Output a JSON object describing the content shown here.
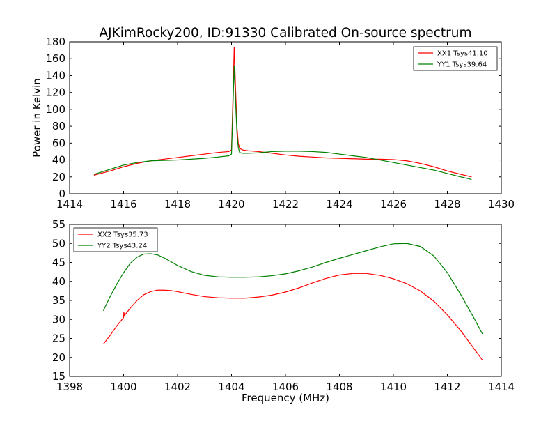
{
  "title": "AJKimRocky200, ID:91330 Calibrated On-source spectrum",
  "colors": {
    "red": "#ff0000",
    "green": "#008000"
  },
  "chart_data": [
    {
      "type": "line",
      "xlabel": "",
      "ylabel": "Power in Kelvin",
      "xlim": [
        1414,
        1430
      ],
      "ylim": [
        0,
        180
      ],
      "xticks": [
        1414,
        1416,
        1418,
        1420,
        1422,
        1424,
        1426,
        1428,
        1430
      ],
      "yticks": [
        0,
        20,
        40,
        60,
        80,
        100,
        120,
        140,
        160,
        180
      ],
      "grid": false,
      "legend": "top-right",
      "series": [
        {
          "name": "XX1 Tsys41.10",
          "color": "#ff0000",
          "x": [
            1414.9,
            1415.5,
            1416.0,
            1416.5,
            1417.0,
            1417.5,
            1418.0,
            1418.5,
            1419.0,
            1419.5,
            1419.9,
            1420.0,
            1420.05,
            1420.1,
            1420.15,
            1420.2,
            1420.25,
            1420.3,
            1420.4,
            1420.6,
            1421.0,
            1421.5,
            1422.0,
            1422.5,
            1423.0,
            1423.5,
            1424.0,
            1424.5,
            1425.0,
            1425.5,
            1426.0,
            1426.5,
            1427.0,
            1427.5,
            1428.0,
            1428.5,
            1428.9
          ],
          "y": [
            22,
            27,
            32,
            36,
            39,
            41,
            43,
            45,
            47,
            49,
            50,
            52,
            110,
            174,
            125,
            80,
            60,
            54,
            52,
            51,
            50,
            48,
            46,
            44.5,
            43.5,
            42.5,
            42,
            41.5,
            41,
            41,
            40.5,
            39,
            36,
            32,
            27,
            23,
            20
          ]
        },
        {
          "name": "YY1 Tsys39.64",
          "color": "#008000",
          "x": [
            1414.9,
            1415.5,
            1416.0,
            1416.5,
            1417.0,
            1417.5,
            1418.0,
            1418.5,
            1419.0,
            1419.5,
            1419.9,
            1420.0,
            1420.05,
            1420.1,
            1420.15,
            1420.2,
            1420.25,
            1420.3,
            1420.4,
            1420.6,
            1421.0,
            1421.5,
            1422.0,
            1422.5,
            1423.0,
            1423.5,
            1424.0,
            1424.5,
            1425.0,
            1425.5,
            1426.0,
            1426.5,
            1427.0,
            1427.5,
            1428.0,
            1428.5,
            1428.9
          ],
          "y": [
            23,
            29,
            34,
            37,
            39,
            39.5,
            40,
            41,
            42,
            43.5,
            45,
            47,
            100,
            152,
            110,
            72,
            55,
            49,
            48,
            48,
            48.5,
            50,
            50.5,
            50.5,
            50,
            49,
            47,
            45,
            43,
            40,
            37,
            34,
            31,
            28,
            24,
            20,
            17
          ]
        }
      ]
    },
    {
      "type": "line",
      "xlabel": "Frequency (MHz)",
      "ylabel": "",
      "xlim": [
        1398,
        1414
      ],
      "ylim": [
        15,
        55
      ],
      "xticks": [
        1398,
        1400,
        1402,
        1404,
        1406,
        1408,
        1410,
        1412,
        1414
      ],
      "yticks": [
        15,
        20,
        25,
        30,
        35,
        40,
        45,
        50,
        55
      ],
      "grid": false,
      "legend": "top-left",
      "series": [
        {
          "name": "XX2 Tsys35.73",
          "color": "#ff0000",
          "x": [
            1399.25,
            1399.5,
            1399.75,
            1400.0,
            1400.01,
            1400.03,
            1400.25,
            1400.5,
            1400.75,
            1401.0,
            1401.25,
            1401.5,
            1401.75,
            1402.0,
            1402.5,
            1403.0,
            1403.5,
            1404.0,
            1404.5,
            1405.0,
            1405.5,
            1406.0,
            1406.5,
            1407.0,
            1407.5,
            1408.0,
            1408.5,
            1409.0,
            1409.5,
            1410.0,
            1410.5,
            1411.0,
            1411.5,
            1412.0,
            1412.5,
            1413.0,
            1413.3
          ],
          "y": [
            23.5,
            25.8,
            28.3,
            30.5,
            32,
            31,
            33,
            35,
            36.5,
            37.3,
            37.7,
            37.7,
            37.6,
            37.3,
            36.6,
            36,
            35.7,
            35.6,
            35.6,
            35.9,
            36.4,
            37.2,
            38.3,
            39.6,
            40.8,
            41.7,
            42.1,
            42.1,
            41.6,
            40.7,
            39.4,
            37.5,
            34.8,
            31.2,
            27,
            22.2,
            19.3
          ]
        },
        {
          "name": "YY2 Tsys43.24",
          "color": "#008000",
          "x": [
            1399.25,
            1399.5,
            1399.75,
            1400.0,
            1400.25,
            1400.5,
            1400.75,
            1401.0,
            1401.25,
            1401.5,
            1401.75,
            1402.0,
            1402.5,
            1403.0,
            1403.5,
            1404.0,
            1404.5,
            1405.0,
            1405.5,
            1406.0,
            1406.5,
            1407.0,
            1407.5,
            1408.0,
            1408.5,
            1409.0,
            1409.5,
            1410.0,
            1410.5,
            1411.0,
            1411.5,
            1412.0,
            1412.5,
            1413.0,
            1413.3
          ],
          "y": [
            32.3,
            36,
            39.3,
            42.3,
            44.8,
            46.4,
            47.2,
            47.3,
            47,
            46.2,
            45.2,
            44.2,
            42.6,
            41.6,
            41.2,
            41.1,
            41.1,
            41.2,
            41.5,
            42,
            42.8,
            43.8,
            45,
            46.1,
            47.1,
            48.1,
            49.1,
            49.9,
            50,
            49.2,
            46.7,
            42.3,
            36.5,
            30.2,
            26.2
          ]
        }
      ]
    }
  ]
}
